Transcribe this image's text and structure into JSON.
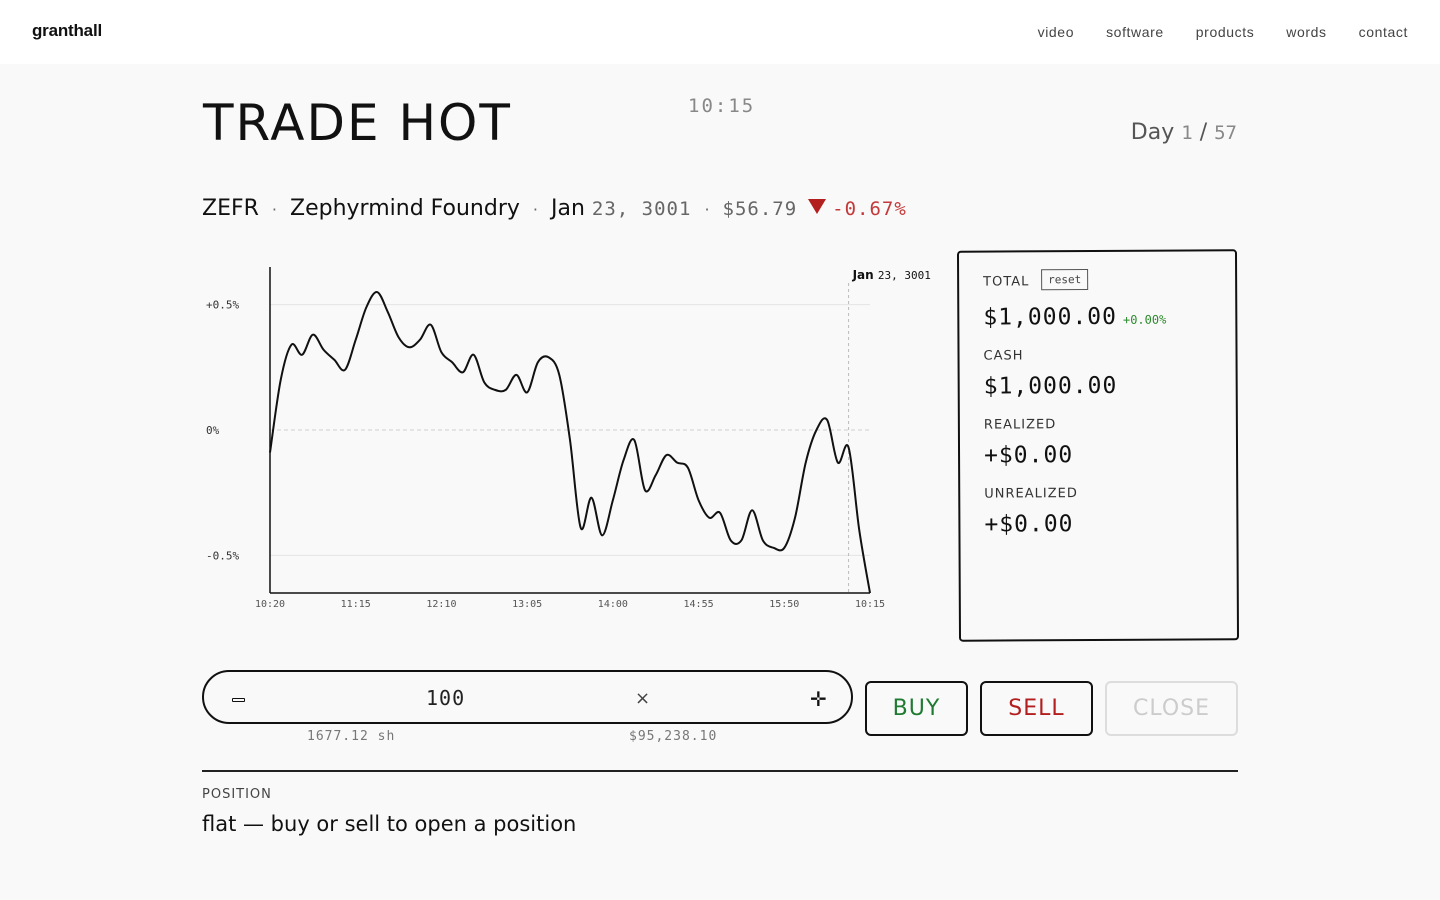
{
  "site": {
    "brand": "granthall",
    "nav": [
      "video",
      "software",
      "products",
      "words",
      "contact"
    ]
  },
  "game": {
    "title": "TRADE HOT",
    "clock": "10:15",
    "day_label": "Day",
    "day_current": "1",
    "day_sep": "/",
    "day_total": "57"
  },
  "ticker": {
    "symbol": "ZEFR",
    "name": "Zephyrmind Foundry",
    "date_month": "Jan",
    "date_rest": "23, 3001",
    "price": "$56.79",
    "change": "-0.67%",
    "sep": "·",
    "direction": "down",
    "down_color": "#b31f1f"
  },
  "chart_data": {
    "type": "line",
    "ylabel": "",
    "xlabel": "",
    "ylim": [
      -0.65,
      0.65
    ],
    "yticks": [
      {
        "value": 0.5,
        "label": "+0.5%"
      },
      {
        "value": 0,
        "label": "0%"
      },
      {
        "value": -0.5,
        "label": "-0.5%"
      }
    ],
    "xticks": [
      "10:20",
      "11:15",
      "12:10",
      "13:05",
      "14:00",
      "14:55",
      "15:50",
      "10:15"
    ],
    "marker": {
      "date_month": "Jan",
      "date_rest": "23, 3001",
      "at_index": 54
    },
    "series": [
      {
        "values": [
          -0.09,
          0.2,
          0.34,
          0.3,
          0.38,
          0.32,
          0.28,
          0.24,
          0.36,
          0.49,
          0.55,
          0.47,
          0.37,
          0.33,
          0.36,
          0.42,
          0.31,
          0.27,
          0.23,
          0.3,
          0.19,
          0.16,
          0.16,
          0.22,
          0.15,
          0.27,
          0.29,
          0.22,
          -0.04,
          -0.39,
          -0.27,
          -0.42,
          -0.28,
          -0.12,
          -0.04,
          -0.24,
          -0.18,
          -0.1,
          -0.13,
          -0.15,
          -0.28,
          -0.35,
          -0.33,
          -0.44,
          -0.44,
          -0.32,
          -0.44,
          -0.47,
          -0.47,
          -0.35,
          -0.13,
          0.0,
          0.04,
          -0.13,
          -0.07,
          -0.4,
          -0.65
        ]
      }
    ],
    "grid": true,
    "line_color": "#111111"
  },
  "portfolio": {
    "total_label": "TOTAL",
    "reset_label": "reset",
    "total_value": "$1,000.00",
    "total_pct": "+0.00%",
    "cash_label": "CASH",
    "cash_value": "$1,000.00",
    "realized_label": "REALIZED",
    "realized_value": "+$0.00",
    "unrealized_label": "UNREALIZED",
    "unrealized_value": "+$0.00",
    "gain_color": "#2a8a2a"
  },
  "order": {
    "quantity": "100",
    "multiply_symbol": "×",
    "shares_sub": "1677.12 sh",
    "cost_sub": "$95,238.10",
    "buy_label": "BUY",
    "sell_label": "SELL",
    "close_label": "CLOSE",
    "buy_color": "#1f7a32",
    "sell_color": "#b31f1f"
  },
  "position": {
    "label": "POSITION",
    "status": "flat — buy or sell to open a position"
  }
}
